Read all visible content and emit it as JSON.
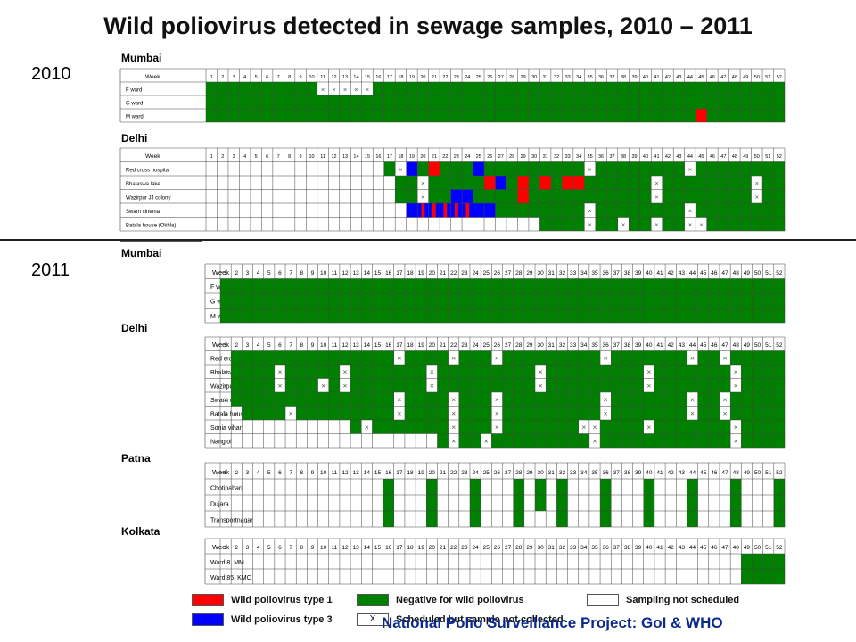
{
  "title": "Wild poliovirus detected in sewage samples, 2010 – 2011",
  "years": [
    "2010",
    "2011"
  ],
  "footer": "National Polio Surveillance Project: GoI & WHO",
  "legend": [
    {
      "label": "Wild poliovirus type 1",
      "color": "#ff0000",
      "key": "p1"
    },
    {
      "label": "Wild poliovirus type 3",
      "color": "#0000ff",
      "key": "p3"
    },
    {
      "label": "Negative for wild poliovirus",
      "color": "#008000",
      "key": "neg"
    },
    {
      "label": "Scheduled but sample not collected",
      "color": "#ffffff",
      "key": "x",
      "symbol": "X"
    },
    {
      "label": "Sampling not scheduled",
      "color": "#ffffff",
      "key": "none"
    }
  ],
  "colors": {
    "neg": "#008000",
    "p1": "#ff0000",
    "p3": "#0000ff",
    "none": "#ffffff",
    "grid": "#444444"
  },
  "chart_data": [
    {
      "type": "table",
      "year": "2010",
      "city": "Mumbai",
      "header": "Week",
      "weeks": 52,
      "rows": [
        {
          "site": "F ward",
          "cells": [
            {
              "from": 1,
              "to": 52,
              "status": "neg"
            },
            {
              "w": 11,
              "status": "x"
            },
            {
              "w": 12,
              "status": "x"
            },
            {
              "w": 13,
              "status": "x"
            },
            {
              "w": 14,
              "status": "x"
            },
            {
              "w": 15,
              "status": "x"
            }
          ]
        },
        {
          "site": "G ward",
          "cells": [
            {
              "from": 1,
              "to": 52,
              "status": "neg"
            }
          ]
        },
        {
          "site": "M ward",
          "cells": [
            {
              "from": 1,
              "to": 52,
              "status": "neg"
            },
            {
              "w": 45,
              "status": "p1"
            }
          ]
        }
      ]
    },
    {
      "type": "table",
      "year": "2010",
      "city": "Delhi",
      "header": "Week",
      "weeks": 52,
      "rows": [
        {
          "site": "Red cross hospital",
          "cells": [
            {
              "from": 17,
              "to": 52,
              "status": "neg"
            },
            {
              "w": 18,
              "status": "x"
            },
            {
              "w": 19,
              "status": "p3"
            },
            {
              "w": 21,
              "status": "p1"
            },
            {
              "w": 25,
              "status": "p3"
            },
            {
              "w": 35,
              "status": "x"
            },
            {
              "w": 44,
              "status": "x"
            }
          ]
        },
        {
          "site": "Bhalaswa lake",
          "cells": [
            {
              "from": 18,
              "to": 52,
              "status": "neg"
            },
            {
              "w": 20,
              "status": "x"
            },
            {
              "w": 26,
              "status": "p1"
            },
            {
              "w": 27,
              "status": "p3"
            },
            {
              "w": 29,
              "status": "p1"
            },
            {
              "w": 31,
              "status": "p1"
            },
            {
              "w": 33,
              "status": "p1"
            },
            {
              "w": 34,
              "status": "p1"
            },
            {
              "w": 41,
              "status": "x"
            },
            {
              "w": 50,
              "status": "x"
            }
          ]
        },
        {
          "site": "Wazirpur JJ colony",
          "cells": [
            {
              "from": 18,
              "to": 52,
              "status": "neg"
            },
            {
              "w": 20,
              "status": "x"
            },
            {
              "w": 23,
              "status": "p3"
            },
            {
              "w": 24,
              "status": "p3"
            },
            {
              "w": 29,
              "status": "p1"
            },
            {
              "w": 41,
              "status": "x"
            },
            {
              "w": 50,
              "status": "x"
            }
          ]
        },
        {
          "site": "Swarn cinema",
          "cells": [
            {
              "from": 19,
              "to": 52,
              "status": "neg"
            },
            {
              "w": 19,
              "status": "p3"
            },
            {
              "w": 20,
              "status": "p13"
            },
            {
              "w": 21,
              "status": "p13"
            },
            {
              "w": 22,
              "status": "p13"
            },
            {
              "w": 23,
              "status": "p13"
            },
            {
              "w": 24,
              "status": "p13"
            },
            {
              "w": 25,
              "status": "p3"
            },
            {
              "w": 26,
              "status": "p3"
            },
            {
              "w": 35,
              "status": "x"
            },
            {
              "w": 44,
              "status": "x"
            }
          ]
        },
        {
          "site": "Batala house (Okhla)",
          "cells": [
            {
              "from": 31,
              "to": 52,
              "status": "neg"
            },
            {
              "w": 35,
              "status": "x"
            },
            {
              "w": 38,
              "status": "x"
            },
            {
              "w": 41,
              "status": "x"
            },
            {
              "w": 44,
              "status": "x"
            },
            {
              "w": 45,
              "status": "x"
            }
          ]
        }
      ]
    },
    {
      "type": "table",
      "year": "2011",
      "city": "Mumbai",
      "header": "Week",
      "weeks": 52,
      "rows": [
        {
          "site": "F ward",
          "cells": [
            {
              "from": 1,
              "to": 52,
              "status": "neg"
            }
          ]
        },
        {
          "site": "G ward",
          "cells": [
            {
              "from": 1,
              "to": 52,
              "status": "neg"
            }
          ]
        },
        {
          "site": "M ward",
          "cells": [
            {
              "from": 1,
              "to": 52,
              "status": "neg"
            }
          ]
        }
      ]
    },
    {
      "type": "table",
      "year": "2011",
      "city": "Delhi",
      "header": "Week",
      "weeks": 52,
      "rows": [
        {
          "site": "Red cross hospital",
          "cells": [
            {
              "from": 1,
              "to": 52,
              "status": "neg"
            },
            {
              "w": 1,
              "status": "x"
            },
            {
              "w": 17,
              "status": "x"
            },
            {
              "w": 22,
              "status": "x"
            },
            {
              "w": 26,
              "status": "x"
            },
            {
              "w": 36,
              "status": "x"
            },
            {
              "w": 44,
              "status": "x"
            },
            {
              "w": 47,
              "status": "x"
            }
          ]
        },
        {
          "site": "Bhalaswa lake",
          "cells": [
            {
              "from": 1,
              "to": 52,
              "status": "neg"
            },
            {
              "w": 1,
              "status": "x"
            },
            {
              "w": 6,
              "status": "x"
            },
            {
              "w": 12,
              "status": "x"
            },
            {
              "w": 20,
              "status": "x"
            },
            {
              "w": 30,
              "status": "x"
            },
            {
              "w": 40,
              "status": "x"
            },
            {
              "w": 48,
              "status": "x"
            }
          ]
        },
        {
          "site": "Wazirpur JJ colony",
          "cells": [
            {
              "from": 1,
              "to": 52,
              "status": "neg"
            },
            {
              "w": 1,
              "status": "x"
            },
            {
              "w": 6,
              "status": "x"
            },
            {
              "w": 10,
              "status": "x"
            },
            {
              "w": 12,
              "status": "x"
            },
            {
              "w": 20,
              "status": "x"
            },
            {
              "w": 30,
              "status": "x"
            },
            {
              "w": 40,
              "status": "x"
            },
            {
              "w": 48,
              "status": "x"
            }
          ]
        },
        {
          "site": "Swarn cinema",
          "cells": [
            {
              "from": 1,
              "to": 52,
              "status": "neg"
            },
            {
              "w": 1,
              "status": "x"
            },
            {
              "w": 17,
              "status": "x"
            },
            {
              "w": 22,
              "status": "x"
            },
            {
              "w": 26,
              "status": "x"
            },
            {
              "w": 36,
              "status": "x"
            },
            {
              "w": 44,
              "status": "x"
            },
            {
              "w": 47,
              "status": "x"
            }
          ]
        },
        {
          "site": "Batala house (Okhla)",
          "cells": [
            {
              "from": 1,
              "to": 52,
              "status": "neg"
            },
            {
              "w": 1,
              "status": "x"
            },
            {
              "w": 2,
              "status": "x"
            },
            {
              "w": 7,
              "status": "x"
            },
            {
              "w": 17,
              "status": "x"
            },
            {
              "w": 22,
              "status": "x"
            },
            {
              "w": 26,
              "status": "x"
            },
            {
              "w": 36,
              "status": "x"
            },
            {
              "w": 44,
              "status": "x"
            },
            {
              "w": 47,
              "status": "x"
            }
          ]
        },
        {
          "site": "Sonia vihar",
          "cells": [
            {
              "from": 13,
              "to": 52,
              "status": "neg"
            },
            {
              "w": 14,
              "status": "x"
            },
            {
              "w": 22,
              "status": "x"
            },
            {
              "w": 26,
              "status": "x"
            },
            {
              "w": 34,
              "status": "x"
            },
            {
              "w": 35,
              "status": "x"
            },
            {
              "w": 40,
              "status": "x"
            },
            {
              "w": 48,
              "status": "x"
            }
          ]
        },
        {
          "site": "Nangloi",
          "cells": [
            {
              "from": 21,
              "to": 52,
              "status": "neg"
            },
            {
              "w": 22,
              "status": "x"
            },
            {
              "w": 25,
              "status": "x"
            },
            {
              "w": 35,
              "status": "x"
            },
            {
              "w": 48,
              "status": "x"
            }
          ]
        }
      ]
    },
    {
      "type": "table",
      "year": "2011",
      "city": "Patna",
      "header": "Week",
      "weeks": 52,
      "rows": [
        {
          "site": "Chotipahari",
          "cells": [
            {
              "w": 16,
              "status": "neg"
            },
            {
              "w": 20,
              "status": "neg"
            },
            {
              "w": 24,
              "status": "neg"
            },
            {
              "w": 28,
              "status": "neg"
            },
            {
              "w": 30,
              "status": "neg"
            },
            {
              "w": 32,
              "status": "neg"
            },
            {
              "w": 36,
              "status": "neg"
            },
            {
              "w": 40,
              "status": "neg"
            },
            {
              "w": 44,
              "status": "neg"
            },
            {
              "w": 48,
              "status": "neg"
            },
            {
              "w": 52,
              "status": "neg"
            }
          ]
        },
        {
          "site": "Dujara",
          "cells": [
            {
              "w": 16,
              "status": "neg"
            },
            {
              "w": 20,
              "status": "neg"
            },
            {
              "w": 24,
              "status": "neg"
            },
            {
              "w": 28,
              "status": "neg"
            },
            {
              "w": 30,
              "status": "neg"
            },
            {
              "w": 32,
              "status": "neg"
            },
            {
              "w": 36,
              "status": "neg"
            },
            {
              "w": 40,
              "status": "neg"
            },
            {
              "w": 44,
              "status": "neg"
            },
            {
              "w": 48,
              "status": "neg"
            },
            {
              "w": 52,
              "status": "neg"
            }
          ]
        },
        {
          "site": "Transportnagar",
          "cells": [
            {
              "w": 16,
              "status": "neg"
            },
            {
              "w": 20,
              "status": "neg"
            },
            {
              "w": 24,
              "status": "neg"
            },
            {
              "w": 28,
              "status": "neg"
            },
            {
              "w": 32,
              "status": "neg"
            },
            {
              "w": 36,
              "status": "neg"
            },
            {
              "w": 40,
              "status": "neg"
            },
            {
              "w": 44,
              "status": "neg"
            },
            {
              "w": 48,
              "status": "neg"
            },
            {
              "w": 52,
              "status": "neg"
            }
          ]
        }
      ]
    },
    {
      "type": "table",
      "year": "2011",
      "city": "Kolkata",
      "header": "Week",
      "weeks": 52,
      "rows": [
        {
          "site": "Ward 8, MM",
          "cells": [
            {
              "from": 49,
              "to": 52,
              "status": "neg"
            }
          ]
        },
        {
          "site": "Ward 85, KMC",
          "cells": [
            {
              "from": 49,
              "to": 52,
              "status": "neg"
            }
          ]
        }
      ]
    }
  ]
}
